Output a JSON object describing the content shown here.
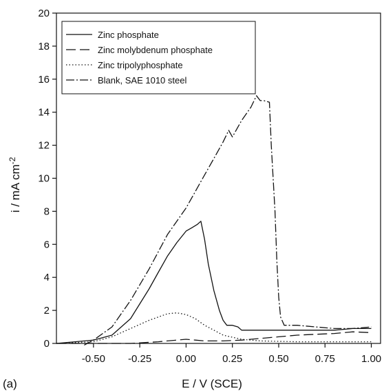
{
  "chart_data": {
    "type": "line",
    "panel_label": "(a)",
    "xlabel": "E / V (SCE)",
    "ylabel_main": "i / mA cm",
    "ylabel_sup": "-2",
    "xlim": [
      -0.7,
      1.05
    ],
    "ylim": [
      0,
      20
    ],
    "xticks": [
      -0.5,
      -0.25,
      0.0,
      0.25,
      0.5,
      0.75,
      1.0
    ],
    "xtick_labels": [
      "-0.50",
      "-0.25",
      "0.00",
      "0.25",
      "0.50",
      "0.75",
      "1.00"
    ],
    "yticks": [
      0,
      2,
      4,
      6,
      8,
      10,
      12,
      14,
      16,
      18,
      20
    ],
    "ytick_labels": [
      "0",
      "2",
      "4",
      "6",
      "8",
      "10",
      "12",
      "14",
      "16",
      "18",
      "20"
    ],
    "grid": false,
    "legend_position": "top-left",
    "series": [
      {
        "name": "Zinc phosphate",
        "style": "solid",
        "x": [
          -0.7,
          -0.6,
          -0.5,
          -0.4,
          -0.3,
          -0.2,
          -0.15,
          -0.1,
          -0.05,
          0.0,
          0.03,
          0.06,
          0.08,
          0.1,
          0.12,
          0.15,
          0.18,
          0.2,
          0.22,
          0.25,
          0.28,
          0.3,
          0.35,
          0.4,
          0.5,
          0.6,
          0.7,
          0.8,
          0.9,
          1.0
        ],
        "y": [
          0.0,
          0.1,
          0.2,
          0.5,
          1.5,
          3.3,
          4.3,
          5.3,
          6.1,
          6.8,
          7.0,
          7.2,
          7.4,
          6.3,
          4.8,
          3.2,
          2.0,
          1.4,
          1.1,
          1.1,
          1.0,
          0.8,
          0.8,
          0.8,
          0.8,
          0.8,
          0.8,
          0.8,
          0.9,
          0.9
        ]
      },
      {
        "name": "Zinc molybdenum phosphate",
        "style": "longdash",
        "x": [
          -0.7,
          -0.5,
          -0.3,
          -0.15,
          -0.05,
          0.0,
          0.05,
          0.1,
          0.2,
          0.3,
          0.4,
          0.5,
          0.6,
          0.7,
          0.8,
          0.9,
          1.0
        ],
        "y": [
          0.0,
          0.0,
          0.0,
          0.1,
          0.2,
          0.25,
          0.2,
          0.15,
          0.15,
          0.2,
          0.3,
          0.4,
          0.5,
          0.55,
          0.6,
          0.7,
          0.65
        ]
      },
      {
        "name": "Zinc tripolyphosphate",
        "style": "dotted",
        "x": [
          -0.7,
          -0.5,
          -0.4,
          -0.3,
          -0.2,
          -0.15,
          -0.1,
          -0.05,
          0.0,
          0.05,
          0.1,
          0.15,
          0.2,
          0.3,
          0.4,
          0.6,
          0.8,
          1.0
        ],
        "y": [
          0.0,
          0.1,
          0.4,
          0.9,
          1.4,
          1.6,
          1.8,
          1.85,
          1.75,
          1.5,
          1.1,
          0.8,
          0.5,
          0.25,
          0.15,
          0.1,
          0.1,
          0.1
        ]
      },
      {
        "name": "Blank, SAE 1010 steel",
        "style": "dashdot",
        "x": [
          -0.55,
          -0.5,
          -0.4,
          -0.3,
          -0.2,
          -0.1,
          0.0,
          0.1,
          0.15,
          0.2,
          0.23,
          0.25,
          0.3,
          0.35,
          0.38,
          0.4,
          0.42,
          0.45,
          0.46,
          0.48,
          0.49,
          0.5,
          0.51,
          0.53,
          0.6,
          0.7,
          0.8,
          0.9,
          1.0
        ],
        "y": [
          -0.1,
          0.2,
          1.0,
          2.6,
          4.5,
          6.6,
          8.2,
          10.2,
          11.2,
          12.2,
          12.9,
          12.5,
          13.5,
          14.3,
          15.0,
          14.7,
          14.7,
          14.6,
          12.0,
          8.0,
          5.0,
          2.8,
          1.6,
          1.1,
          1.1,
          1.0,
          0.9,
          0.9,
          1.0
        ]
      }
    ]
  }
}
